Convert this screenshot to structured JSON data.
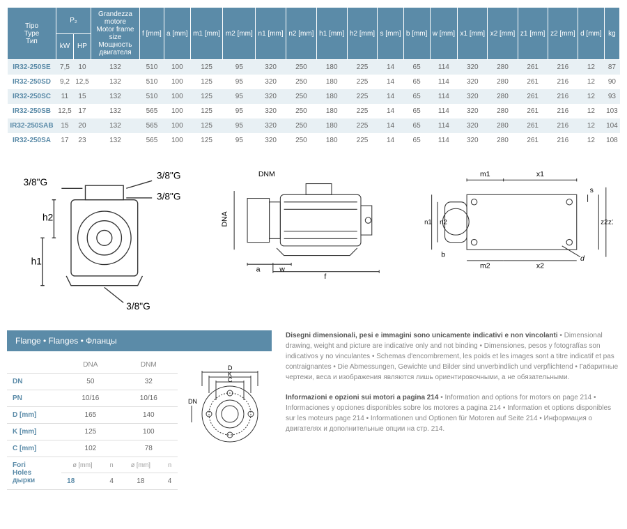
{
  "headers": {
    "type": "Tipo\nType\nТип",
    "p2": "P₂",
    "kw": "kW",
    "hp": "HP",
    "motor": "Grandezza motore\nMotor frame size\nМощность двигателя",
    "cols": [
      "f [mm]",
      "a [mm]",
      "m1 [mm]",
      "m2 [mm]",
      "n1 [mm]",
      "n2 [mm]",
      "h1 [mm]",
      "h2 [mm]",
      "s [mm]",
      "b [mm]",
      "w [mm]",
      "x1 [mm]",
      "x2 [mm]",
      "z1 [mm]",
      "z2 [mm]",
      "d [mm]",
      "kg"
    ]
  },
  "rows": [
    {
      "type": "IR32-250SE",
      "kw": "7,5",
      "hp": "10",
      "motor": "132",
      "v": [
        "510",
        "100",
        "125",
        "95",
        "320",
        "250",
        "180",
        "225",
        "14",
        "65",
        "114",
        "320",
        "280",
        "261",
        "216",
        "12",
        "87"
      ]
    },
    {
      "type": "IR32-250SD",
      "kw": "9,2",
      "hp": "12,5",
      "motor": "132",
      "v": [
        "510",
        "100",
        "125",
        "95",
        "320",
        "250",
        "180",
        "225",
        "14",
        "65",
        "114",
        "320",
        "280",
        "261",
        "216",
        "12",
        "90"
      ]
    },
    {
      "type": "IR32-250SC",
      "kw": "11",
      "hp": "15",
      "motor": "132",
      "v": [
        "510",
        "100",
        "125",
        "95",
        "320",
        "250",
        "180",
        "225",
        "14",
        "65",
        "114",
        "320",
        "280",
        "261",
        "216",
        "12",
        "93"
      ]
    },
    {
      "type": "IR32-250SB",
      "kw": "12,5",
      "hp": "17",
      "motor": "132",
      "v": [
        "565",
        "100",
        "125",
        "95",
        "320",
        "250",
        "180",
        "225",
        "14",
        "65",
        "114",
        "320",
        "280",
        "261",
        "216",
        "12",
        "103"
      ]
    },
    {
      "type": "IR32-250SAB",
      "kw": "15",
      "hp": "20",
      "motor": "132",
      "v": [
        "565",
        "100",
        "125",
        "95",
        "320",
        "250",
        "180",
        "225",
        "14",
        "65",
        "114",
        "320",
        "280",
        "261",
        "216",
        "12",
        "104"
      ]
    },
    {
      "type": "IR32-250SA",
      "kw": "17",
      "hp": "23",
      "motor": "132",
      "v": [
        "565",
        "100",
        "125",
        "95",
        "320",
        "250",
        "180",
        "225",
        "14",
        "65",
        "114",
        "320",
        "280",
        "261",
        "216",
        "12",
        "108"
      ]
    }
  ],
  "flangeHeader": "Flange • Flanges • Фланцы",
  "flangeCols": [
    "",
    "DNA",
    "DNM"
  ],
  "flangeRows": [
    {
      "label": "DN",
      "dna": "50",
      "dnm": "32"
    },
    {
      "label": "PN",
      "dna": "10/16",
      "dnm": "10/16"
    },
    {
      "label": "D [mm]",
      "dna": "165",
      "dnm": "140"
    },
    {
      "label": "K [mm]",
      "dna": "125",
      "dnm": "100"
    },
    {
      "label": "C [mm]",
      "dna": "102",
      "dnm": "78"
    }
  ],
  "foriLabel": "Fori\nHoles\nдырки",
  "foriSub": [
    "ø [mm]",
    "n",
    "ø [mm]",
    "n"
  ],
  "foriVals": [
    "18",
    "4",
    "18",
    "4"
  ],
  "note1bold": "Disegni dimensionali, pesi e immagini sono unicamente indicativi e non vincolanti",
  "note1": " • Dimensional drawing, weight and picture are indicative only and not binding • Dimensiones, pesos y fotografías son indicativos y no vinculantes • Schemas d'encombrement, les poids et les images sont a titre indicatif et pas contraignantes • Die Abmessungen, Gewichte und Bilder sind unverbindlich und verpflichtend • Габаритные чертежи, веса и изображения являются лишь ориентировочными, а не обязательными.",
  "note2bold": "Informazioni e opzioni sui motori a pagina 214",
  "note2": " • Information and options for motors on page 214 • Informaciones y opciones disponibles sobre los motores a pagina 214 • Information et options disponibles sur les moteurs page 214 • Informationen und Optionen für Motoren auf Seite 214 • Информация о двигателях и дополнительные опции на стр. 214.",
  "diagLabels": {
    "g": "3/8\"G",
    "h1": "h1",
    "h2": "h2",
    "dnm": "DNM",
    "dna": "DNA",
    "a": "a",
    "w": "w",
    "f": "f",
    "m1": "m1",
    "x1": "x1",
    "s": "s",
    "n1": "n1",
    "n2": "n2",
    "b": "b",
    "m2": "m2",
    "x2": "x2",
    "d": "d",
    "z1": "z1",
    "z2": "z2",
    "D": "D",
    "K": "K",
    "C": "C",
    "DN": "DN"
  }
}
